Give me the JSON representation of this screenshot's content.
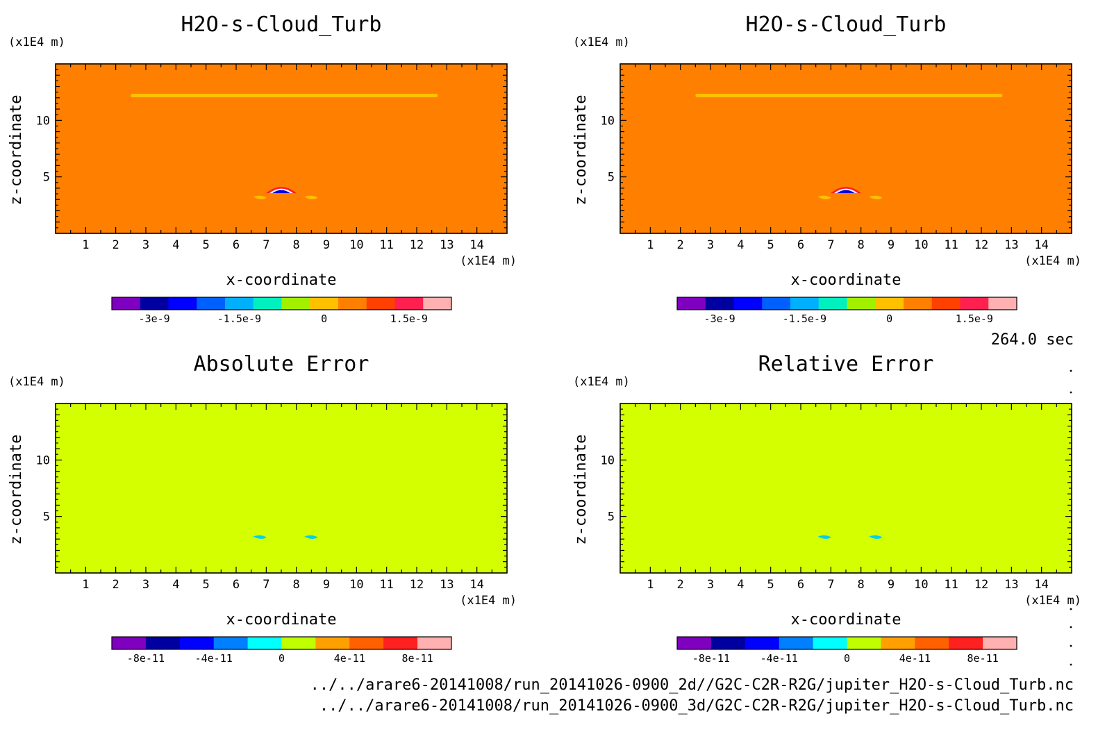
{
  "figure": {
    "time_label": "264.0 sec",
    "file_paths": [
      "../../arare6-20141008/run_20141026-0900_2d//G2C-C2R-R2G/jupiter_H2O-s-Cloud_Turb.nc",
      "../../arare6-20141008/run_20141026-0900_3d/G2C-C2R-R2G/jupiter_H2O-s-Cloud_Turb.nc"
    ]
  },
  "chart_data": [
    {
      "type": "heatmap",
      "title": "H2O-s-Cloud_Turb",
      "xlabel": "x-coordinate",
      "ylabel": "z-coordinate",
      "xunit": "(x1E4 m)",
      "yunit": "(x1E4 m)",
      "xlim": [
        0,
        15
      ],
      "ylim": [
        0,
        15
      ],
      "xticks": [
        "1",
        "2",
        "3",
        "4",
        "5",
        "6",
        "7",
        "8",
        "9",
        "10",
        "11",
        "12",
        "13",
        "14"
      ],
      "yticks": [
        "5",
        "10"
      ],
      "background_color": "#ff8000",
      "features": [
        {
          "kind": "band",
          "x": [
            2.5,
            12.7
          ],
          "z": 12.2,
          "color": "#ffc000"
        },
        {
          "kind": "cell",
          "x": 7.5,
          "z": 3.8,
          "colors": [
            "#ff2020",
            "#ffffff",
            "#0000e0"
          ]
        },
        {
          "kind": "wisp",
          "x": 6.8,
          "z": 3.1,
          "color": "#ffc000"
        },
        {
          "kind": "wisp",
          "x": 8.5,
          "z": 3.1,
          "color": "#ffc000"
        }
      ],
      "colorbar": {
        "colors": [
          "#8000c0",
          "#0000a0",
          "#0000ff",
          "#0060ff",
          "#00b0ff",
          "#00f0c0",
          "#a0f000",
          "#ffc000",
          "#ff8000",
          "#ff4000",
          "#ff2050",
          "#ffb0b0"
        ],
        "ticks": [
          "-3e-9",
          "-1.5e-9",
          "0",
          "1.5e-9"
        ],
        "tick_positions": [
          1.5,
          4.5,
          7.5,
          10.5
        ]
      }
    },
    {
      "type": "heatmap",
      "title": "H2O-s-Cloud_Turb",
      "xlabel": "x-coordinate",
      "ylabel": "z-coordinate",
      "xunit": "(x1E4 m)",
      "yunit": "(x1E4 m)",
      "xlim": [
        0,
        15
      ],
      "ylim": [
        0,
        15
      ],
      "xticks": [
        "1",
        "2",
        "3",
        "4",
        "5",
        "6",
        "7",
        "8",
        "9",
        "10",
        "11",
        "12",
        "13",
        "14"
      ],
      "yticks": [
        "5",
        "10"
      ],
      "background_color": "#ff8000",
      "features": [
        {
          "kind": "band",
          "x": [
            2.5,
            12.7
          ],
          "z": 12.2,
          "color": "#ffc000"
        },
        {
          "kind": "cell",
          "x": 7.5,
          "z": 3.8,
          "colors": [
            "#ff2020",
            "#ffffff",
            "#0000e0"
          ]
        },
        {
          "kind": "wisp",
          "x": 6.8,
          "z": 3.1,
          "color": "#ffc000"
        },
        {
          "kind": "wisp",
          "x": 8.5,
          "z": 3.1,
          "color": "#ffc000"
        }
      ],
      "colorbar": {
        "colors": [
          "#8000c0",
          "#0000a0",
          "#0000ff",
          "#0060ff",
          "#00b0ff",
          "#00f0c0",
          "#a0f000",
          "#ffc000",
          "#ff8000",
          "#ff4000",
          "#ff2050",
          "#ffb0b0"
        ],
        "ticks": [
          "-3e-9",
          "-1.5e-9",
          "0",
          "1.5e-9"
        ],
        "tick_positions": [
          1.5,
          4.5,
          7.5,
          10.5
        ]
      }
    },
    {
      "type": "heatmap",
      "title": "Absolute Error",
      "xlabel": "x-coordinate",
      "ylabel": "z-coordinate",
      "xunit": "(x1E4 m)",
      "yunit": "(x1E4 m)",
      "xlim": [
        0,
        15
      ],
      "ylim": [
        0,
        15
      ],
      "xticks": [
        "1",
        "2",
        "3",
        "4",
        "5",
        "6",
        "7",
        "8",
        "9",
        "10",
        "11",
        "12",
        "13",
        "14"
      ],
      "yticks": [
        "5",
        "10"
      ],
      "background_color": "#d4ff00",
      "features": [
        {
          "kind": "wisp",
          "x": 6.8,
          "z": 3.1,
          "color": "#00d0f0"
        },
        {
          "kind": "wisp",
          "x": 8.5,
          "z": 3.1,
          "color": "#00d0f0"
        }
      ],
      "colorbar": {
        "colors": [
          "#8000c0",
          "#0000a0",
          "#0000ff",
          "#0080ff",
          "#00ffff",
          "#c0ff00",
          "#ffa000",
          "#ff6000",
          "#ff2020",
          "#ffb0b0"
        ],
        "ticks": [
          "-8e-11",
          "-4e-11",
          "0",
          "4e-11",
          "8e-11"
        ],
        "tick_positions": [
          1,
          3,
          5,
          7,
          9
        ]
      }
    },
    {
      "type": "heatmap",
      "title": "Relative Error",
      "xlabel": "x-coordinate",
      "ylabel": "z-coordinate",
      "xunit": "(x1E4 m)",
      "yunit": "(x1E4 m)",
      "xlim": [
        0,
        15
      ],
      "ylim": [
        0,
        15
      ],
      "xticks": [
        "1",
        "2",
        "3",
        "4",
        "5",
        "6",
        "7",
        "8",
        "9",
        "10",
        "11",
        "12",
        "13",
        "14"
      ],
      "yticks": [
        "5",
        "10"
      ],
      "background_color": "#d4ff00",
      "features": [
        {
          "kind": "wisp",
          "x": 6.8,
          "z": 3.1,
          "color": "#00d0f0"
        },
        {
          "kind": "wisp",
          "x": 8.5,
          "z": 3.1,
          "color": "#00d0f0"
        }
      ],
      "colorbar": {
        "colors": [
          "#8000c0",
          "#0000a0",
          "#0000ff",
          "#0080ff",
          "#00ffff",
          "#c0ff00",
          "#ffa000",
          "#ff6000",
          "#ff2020",
          "#ffb0b0"
        ],
        "ticks": [
          "-8e-11",
          "-4e-11",
          "0",
          "4e-11",
          "8e-11"
        ],
        "tick_positions": [
          1,
          3,
          5,
          7,
          9
        ]
      }
    }
  ]
}
